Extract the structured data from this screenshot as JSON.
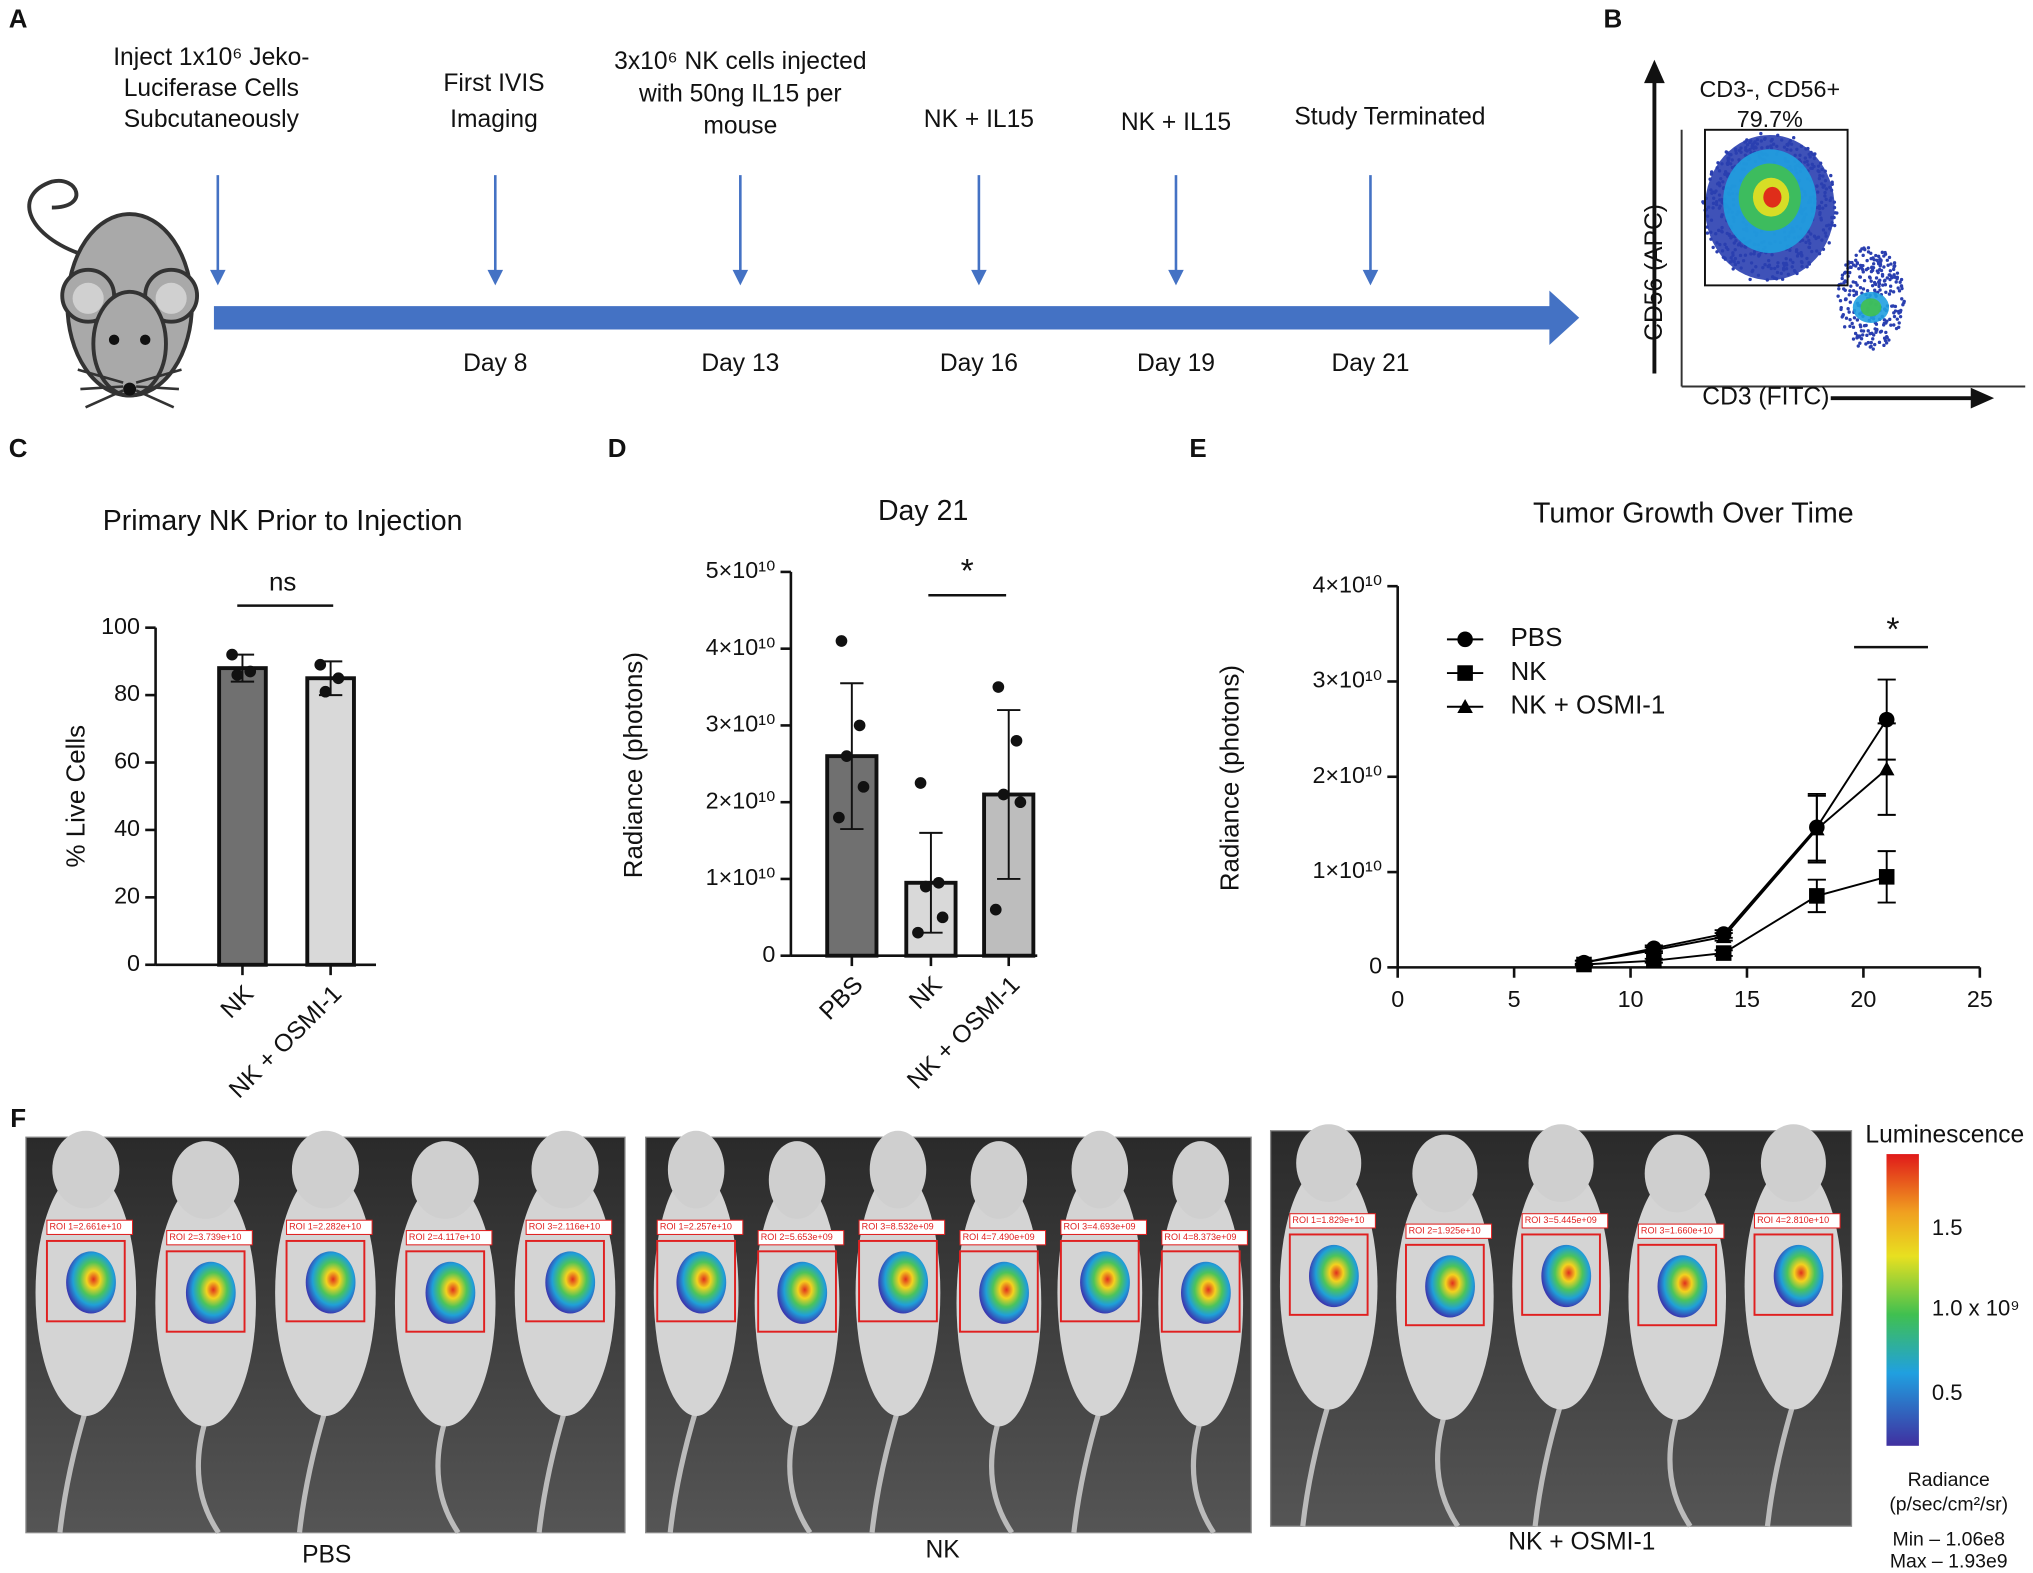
{
  "panel_labels": [
    "A",
    "B",
    "C",
    "D",
    "E",
    "F"
  ],
  "timeline": {
    "events": [
      {
        "lines": [
          "Inject 1x10⁶ Jeko-",
          "Luciferase Cells",
          "Subcutaneously"
        ]
      },
      {
        "lines": [
          "First IVIS",
          "Imaging"
        ],
        "day": "Day 8"
      },
      {
        "lines": [
          "3x10⁶ NK cells injected",
          "with 50ng IL15 per",
          "mouse"
        ],
        "day": "Day 13"
      },
      {
        "lines": [
          "NK + IL15"
        ],
        "day": "Day 16"
      },
      {
        "lines": [
          "NK + IL15"
        ],
        "day": "Day 19"
      },
      {
        "lines": [
          "Study Terminated"
        ],
        "day": "Day 21"
      }
    ]
  },
  "flow": {
    "gate_label": [
      "CD3-, CD56+",
      "79.7%"
    ],
    "y_axis": "CD56 (APC)",
    "x_axis": "CD3 (FITC)"
  },
  "chart_data": [
    {
      "type": "bar",
      "title": "Primary NK Prior to Injection",
      "y_label": "% Live Cells",
      "categories": [
        "NK",
        "NK + OSMI-1"
      ],
      "values": [
        88,
        85
      ],
      "errors": [
        4,
        5
      ],
      "points": [
        [
          92,
          87,
          86
        ],
        [
          89,
          85,
          81
        ]
      ],
      "colors": [
        "#707070",
        "#d9d9d9"
      ],
      "ylim": [
        0,
        100
      ],
      "yticks": [
        0,
        20,
        40,
        60,
        80,
        100
      ],
      "annotation": "ns"
    },
    {
      "type": "bar",
      "title": "Day 21",
      "y_label": "Radiance (photons)",
      "categories": [
        "PBS",
        "NK",
        "NK + OSMI-1"
      ],
      "values": [
        26000000000,
        9500000000,
        21000000000
      ],
      "errors": [
        9500000000,
        6500000000,
        11000000000
      ],
      "points": [
        [
          41000000000,
          30000000000,
          26000000000,
          22000000000,
          18000000000
        ],
        [
          22500000000,
          9500000000,
          9000000000,
          5000000000,
          3000000000
        ],
        [
          35000000000,
          28000000000,
          21000000000,
          20000000000,
          6000000000
        ]
      ],
      "colors": [
        "#707070",
        "#d9d9d9",
        "#bdbdbd"
      ],
      "ylim": [
        0,
        50000000000
      ],
      "yticks": [
        0,
        {
          "value": 10000000000,
          "label": "1×10¹⁰"
        },
        {
          "value": 20000000000,
          "label": "2×10¹⁰"
        },
        {
          "value": 30000000000,
          "label": "3×10¹⁰"
        },
        {
          "value": 40000000000,
          "label": "4×10¹⁰"
        },
        {
          "value": 50000000000,
          "label": "5×10¹⁰"
        }
      ],
      "annotation": "*"
    },
    {
      "type": "line",
      "title": "Tumor Growth Over Time",
      "y_label": "Radiance (photons)",
      "x": [
        8,
        11,
        14,
        18,
        21
      ],
      "series": [
        {
          "name": "PBS",
          "color": "#000000",
          "marker": "circle",
          "values": [
            500000000,
            2000000000,
            3500000000,
            14700000000,
            26000000000
          ],
          "errors": [
            200000000,
            300000000,
            400000000,
            3500000000,
            4200000000
          ]
        },
        {
          "name": "NK",
          "color": "#000000",
          "marker": "square",
          "values": [
            300000000,
            700000000,
            1500000000,
            7500000000,
            9500000000
          ],
          "errors": [
            100000000,
            200000000,
            300000000,
            1700000000,
            2700000000
          ]
        },
        {
          "name": "NK + OSMI-1",
          "color": "#000000",
          "marker": "triangle",
          "values": [
            500000000,
            1800000000,
            3200000000,
            14500000000,
            20800000000
          ],
          "errors": [
            200000000,
            300000000,
            400000000,
            3500000000,
            4800000000
          ]
        }
      ],
      "xlim": [
        0,
        25
      ],
      "xticks": [
        0,
        5,
        10,
        15,
        20,
        25
      ],
      "ylim": [
        0,
        40000000000
      ],
      "yticks": [
        0,
        {
          "value": 10000000000,
          "label": "1×10¹⁰"
        },
        {
          "value": 20000000000,
          "label": "2×10¹⁰"
        },
        {
          "value": 30000000000,
          "label": "3×10¹⁰"
        },
        {
          "value": 40000000000,
          "label": "4×10¹⁰"
        }
      ],
      "legend": "upper left",
      "annotation": "*"
    }
  ],
  "imaging": {
    "groups": [
      {
        "label": "PBS",
        "rois": [
          "ROI 1=2.661e+10",
          "ROI 2=3.739e+10",
          "ROI 1=2.282e+10",
          "ROI 2=4.117e+10",
          "ROI 3=2.116e+10"
        ]
      },
      {
        "label": "NK",
        "rois": [
          "ROI 1=2.257e+10",
          "ROI 2=5.653e+09",
          "ROI 3=8.532e+09",
          "ROI 4=7.490e+09",
          "ROI 3=4.693e+09",
          "ROI 4=8.373e+09"
        ]
      },
      {
        "label": "NK + OSMI-1",
        "rois": [
          "ROI 1=1.829e+10",
          "ROI 2=1.925e+10",
          "ROI 3=5.445e+09",
          "ROI 3=1.660e+10",
          "ROI 4=2.810e+10"
        ]
      }
    ],
    "colorbar": {
      "title": "Luminescence",
      "ticks": [
        "1.5",
        "1.0 x 10⁹",
        "0.5"
      ],
      "unit": [
        "Radiance",
        "(p/sec/cm²/sr)"
      ],
      "min": "Min – 1.06e8",
      "max": "Max – 1.93e9"
    }
  }
}
